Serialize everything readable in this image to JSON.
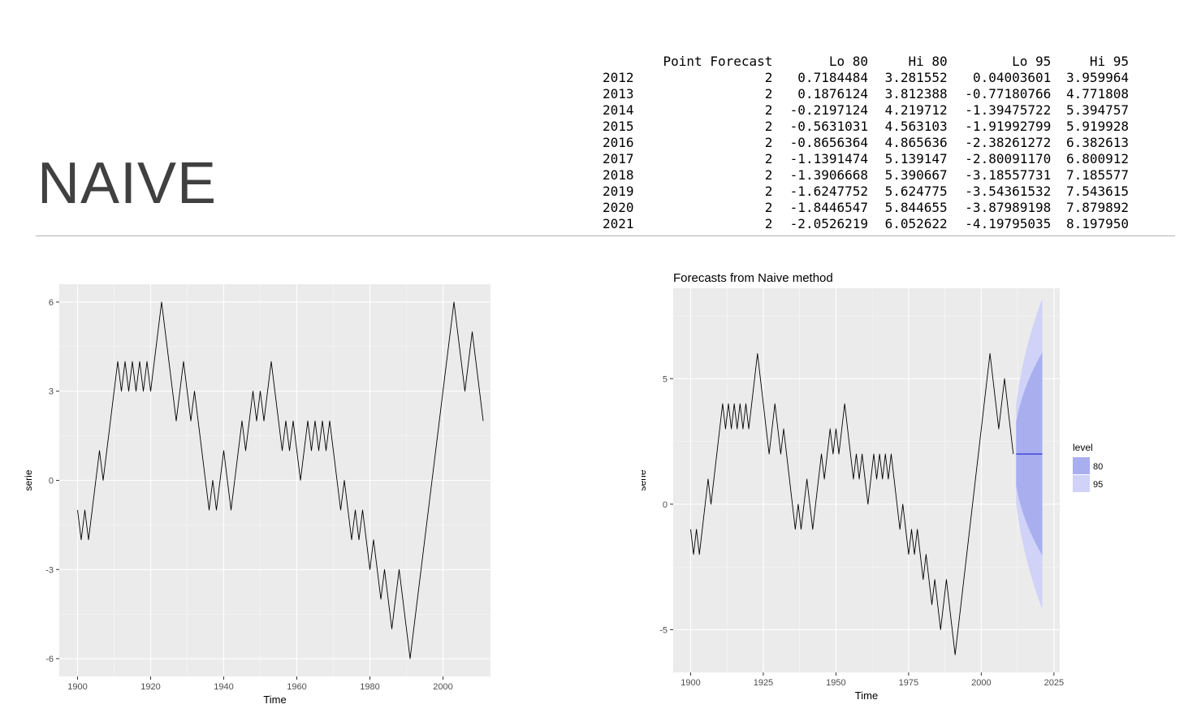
{
  "slide": {
    "title": "NAIVE"
  },
  "table": {
    "headers": [
      "",
      "Point Forecast",
      "Lo 80",
      "Hi 80",
      "Lo 95",
      "Hi 95"
    ],
    "rows": [
      [
        "2012",
        "2",
        "0.7184484",
        "3.281552",
        "0.04003601",
        "3.959964"
      ],
      [
        "2013",
        "2",
        "0.1876124",
        "3.812388",
        "-0.77180766",
        "4.771808"
      ],
      [
        "2014",
        "2",
        "-0.2197124",
        "4.219712",
        "-1.39475722",
        "5.394757"
      ],
      [
        "2015",
        "2",
        "-0.5631031",
        "4.563103",
        "-1.91992799",
        "5.919928"
      ],
      [
        "2016",
        "2",
        "-0.8656364",
        "4.865636",
        "-2.38261272",
        "6.382613"
      ],
      [
        "2017",
        "2",
        "-1.1391474",
        "5.139147",
        "-2.80091170",
        "6.800912"
      ],
      [
        "2018",
        "2",
        "-1.3906668",
        "5.390667",
        "-3.18557731",
        "7.185577"
      ],
      [
        "2019",
        "2",
        "-1.6247752",
        "5.624775",
        "-3.54361532",
        "7.543615"
      ],
      [
        "2020",
        "2",
        "-1.8446547",
        "5.844655",
        "-3.87989198",
        "7.879892"
      ],
      [
        "2021",
        "2",
        "-2.0526219",
        "6.052622",
        "-4.19795035",
        "8.197950"
      ]
    ]
  },
  "chart_data": [
    {
      "type": "line",
      "title": "",
      "xlabel": "Time",
      "ylabel": "serie",
      "xlim": [
        1895,
        2013
      ],
      "ylim": [
        -6.6,
        6.6
      ],
      "xticks": [
        1900,
        1920,
        1940,
        1960,
        1980,
        2000
      ],
      "yticks": [
        -6,
        -3,
        0,
        3,
        6
      ],
      "grid": true,
      "series": [
        {
          "x_start": 1900,
          "values": [
            -1,
            -2,
            -1,
            -2,
            -1,
            0,
            1,
            0,
            1,
            2,
            3,
            4,
            3,
            4,
            3,
            4,
            3,
            4,
            3,
            4,
            3,
            4,
            5,
            6,
            5,
            4,
            3,
            2,
            3,
            4,
            3,
            2,
            3,
            2,
            1,
            0,
            -1,
            0,
            -1,
            0,
            1,
            0,
            -1,
            0,
            1,
            2,
            1,
            2,
            3,
            2,
            3,
            2,
            3,
            4,
            3,
            2,
            1,
            2,
            1,
            2,
            1,
            0,
            1,
            2,
            1,
            2,
            1,
            2,
            1,
            2,
            1,
            0,
            -1,
            0,
            -1,
            -2,
            -1,
            -2,
            -1,
            -2,
            -3,
            -2,
            -3,
            -4,
            -3,
            -4,
            -5,
            -4,
            -3,
            -4,
            -5,
            -6,
            -5,
            -4,
            -3,
            -2,
            -1,
            0,
            1,
            2,
            3,
            4,
            5,
            6,
            5,
            4,
            3,
            4,
            5,
            4,
            3,
            2
          ]
        }
      ]
    },
    {
      "type": "line",
      "title": "Forecasts from Naive method",
      "xlabel": "Time",
      "ylabel": "serie",
      "xlim": [
        1894,
        2027
      ],
      "ylim": [
        -6.7,
        8.6
      ],
      "xticks": [
        1900,
        1925,
        1950,
        1975,
        2000,
        2025
      ],
      "yticks": [
        -5,
        0,
        5
      ],
      "grid": true,
      "series": [
        {
          "x_start": 1900,
          "values": [
            -1,
            -2,
            -1,
            -2,
            -1,
            0,
            1,
            0,
            1,
            2,
            3,
            4,
            3,
            4,
            3,
            4,
            3,
            4,
            3,
            4,
            3,
            4,
            5,
            6,
            5,
            4,
            3,
            2,
            3,
            4,
            3,
            2,
            3,
            2,
            1,
            0,
            -1,
            0,
            -1,
            0,
            1,
            0,
            -1,
            0,
            1,
            2,
            1,
            2,
            3,
            2,
            3,
            2,
            3,
            4,
            3,
            2,
            1,
            2,
            1,
            2,
            1,
            0,
            1,
            2,
            1,
            2,
            1,
            2,
            1,
            2,
            1,
            0,
            -1,
            0,
            -1,
            -2,
            -1,
            -2,
            -1,
            -2,
            -3,
            -2,
            -3,
            -4,
            -3,
            -4,
            -5,
            -4,
            -3,
            -4,
            -5,
            -6,
            -5,
            -4,
            -3,
            -2,
            -1,
            0,
            1,
            2,
            3,
            4,
            5,
            6,
            5,
            4,
            3,
            4,
            5,
            4,
            3,
            2
          ]
        }
      ],
      "forecast": {
        "years": [
          2012,
          2013,
          2014,
          2015,
          2016,
          2017,
          2018,
          2019,
          2020,
          2021
        ],
        "point": [
          2,
          2,
          2,
          2,
          2,
          2,
          2,
          2,
          2,
          2
        ],
        "lo80": [
          0.7184484,
          0.1876124,
          -0.2197124,
          -0.5631031,
          -0.8656364,
          -1.1391474,
          -1.3906668,
          -1.6247752,
          -1.8446547,
          -2.0526219
        ],
        "hi80": [
          3.281552,
          3.812388,
          4.219712,
          4.563103,
          4.865636,
          5.139147,
          5.390667,
          5.624775,
          5.844655,
          6.052622
        ],
        "lo95": [
          0.04003601,
          -0.77180766,
          -1.39475722,
          -1.91992799,
          -2.38261272,
          -2.8009117,
          -3.18557731,
          -3.54361532,
          -3.87989198,
          -4.19795035
        ],
        "hi95": [
          3.959964,
          4.771808,
          5.394757,
          5.919928,
          6.382613,
          6.800912,
          7.185577,
          7.543615,
          7.879892,
          8.19795
        ]
      },
      "legend": {
        "title": "level",
        "items": [
          "80",
          "95"
        ],
        "placement": "right"
      },
      "colors": {
        "band80": "#a9aeee",
        "band95": "#d0d3f7",
        "point": "#3b3fd6",
        "line": "#000000"
      }
    }
  ]
}
